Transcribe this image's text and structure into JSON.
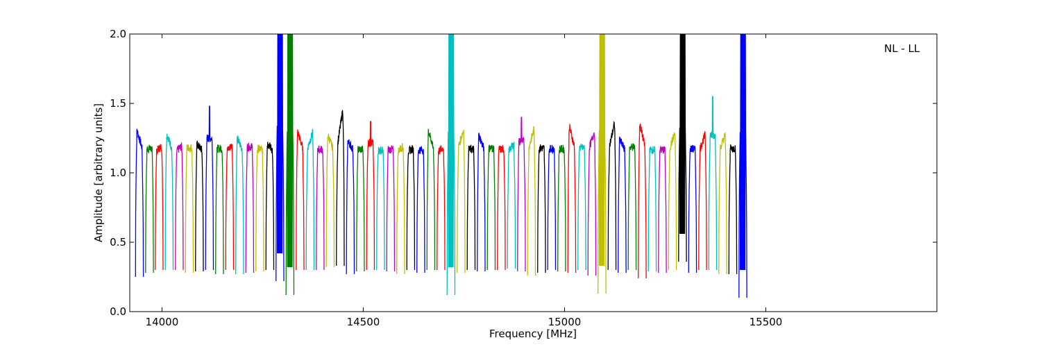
{
  "chart_data": {
    "type": "line",
    "title": "",
    "xlabel": "Frequency [MHz]",
    "ylabel": "Amplitude [arbitrary units]",
    "annotation": "NL - LL",
    "xlim": [
      13920,
      15925
    ],
    "ylim": [
      0.0,
      2.0
    ],
    "xticks": [
      14000,
      14500,
      15000,
      15500
    ],
    "xtick_labels": [
      "14000",
      "14500",
      "15000",
      "15500"
    ],
    "yticks": [
      0.0,
      0.5,
      1.0,
      1.5,
      2.0
    ],
    "ytick_labels": [
      "0.0",
      "0.5",
      "1.0",
      "1.5",
      "2.0"
    ],
    "grid": false,
    "legend": "none",
    "subband_width_mhz": 19.5,
    "colors": [
      "#0000ff",
      "#008000",
      "#ff0000",
      "#00bfbf",
      "#bf00bf",
      "#bfbf00",
      "#000000"
    ],
    "background_color": "#b0b0b0",
    "series": [
      {
        "center": 13944,
        "color": "#0000ff",
        "peak": 1.34,
        "floor": 0.25,
        "tilt": "left"
      },
      {
        "center": 13969,
        "color": "#008000",
        "peak": 1.23,
        "floor": 0.28,
        "tilt": "flat"
      },
      {
        "center": 13993,
        "color": "#ff0000",
        "peak": 1.2,
        "floor": 0.3,
        "tilt": "right"
      },
      {
        "center": 14018,
        "color": "#00bfbf",
        "peak": 1.31,
        "floor": 0.3,
        "tilt": "left"
      },
      {
        "center": 14043,
        "color": "#bf00bf",
        "peak": 1.2,
        "floor": 0.3,
        "tilt": "right"
      },
      {
        "center": 14068,
        "color": "#bfbf00",
        "peak": 1.25,
        "floor": 0.28,
        "tilt": "flat"
      },
      {
        "center": 14093,
        "color": "#000000",
        "peak": 1.22,
        "floor": 0.29,
        "tilt": "left"
      },
      {
        "center": 14118,
        "color": "#0000ff",
        "peak": 1.48,
        "floor": 0.3,
        "tilt": "spike"
      },
      {
        "center": 14143,
        "color": "#008000",
        "peak": 1.23,
        "floor": 0.27,
        "tilt": "flat"
      },
      {
        "center": 14168,
        "color": "#ff0000",
        "peak": 1.21,
        "floor": 0.3,
        "tilt": "right"
      },
      {
        "center": 14193,
        "color": "#00bfbf",
        "peak": 1.27,
        "floor": 0.27,
        "tilt": "left"
      },
      {
        "center": 14218,
        "color": "#bf00bf",
        "peak": 1.27,
        "floor": 0.28,
        "tilt": "flat"
      },
      {
        "center": 14243,
        "color": "#bfbf00",
        "peak": 1.22,
        "floor": 0.29,
        "tilt": "flat"
      },
      {
        "center": 14268,
        "color": "#000000",
        "peak": 1.23,
        "floor": 0.3,
        "tilt": "left"
      },
      {
        "center": 14293,
        "color": "#0000ff",
        "peak": 2.0,
        "floor": 0.22,
        "tilt": "rfi"
      },
      {
        "center": 14318,
        "color": "#008000",
        "peak": 2.0,
        "floor": 0.12,
        "tilt": "rfi"
      },
      {
        "center": 14343,
        "color": "#ff0000",
        "peak": 1.33,
        "floor": 0.3,
        "tilt": "left"
      },
      {
        "center": 14368,
        "color": "#00bfbf",
        "peak": 1.32,
        "floor": 0.3,
        "tilt": "right"
      },
      {
        "center": 14393,
        "color": "#bf00bf",
        "peak": 1.21,
        "floor": 0.3,
        "tilt": "flat"
      },
      {
        "center": 14418,
        "color": "#bfbf00",
        "peak": 1.3,
        "floor": 0.32,
        "tilt": "left"
      },
      {
        "center": 14443,
        "color": "#000000",
        "peak": 1.52,
        "floor": 0.33,
        "tilt": "right"
      },
      {
        "center": 14468,
        "color": "#0000ff",
        "peak": 1.25,
        "floor": 0.27,
        "tilt": "left"
      },
      {
        "center": 14493,
        "color": "#008000",
        "peak": 1.21,
        "floor": 0.29,
        "tilt": "flat"
      },
      {
        "center": 14518,
        "color": "#ff0000",
        "peak": 1.37,
        "floor": 0.3,
        "tilt": "spike"
      },
      {
        "center": 14543,
        "color": "#00bfbf",
        "peak": 1.19,
        "floor": 0.3,
        "tilt": "flat"
      },
      {
        "center": 14568,
        "color": "#bf00bf",
        "peak": 1.21,
        "floor": 0.29,
        "tilt": "flat"
      },
      {
        "center": 14593,
        "color": "#bfbf00",
        "peak": 1.2,
        "floor": 0.27,
        "tilt": "right"
      },
      {
        "center": 14618,
        "color": "#000000",
        "peak": 1.18,
        "floor": 0.3,
        "tilt": "right"
      },
      {
        "center": 14643,
        "color": "#0000ff",
        "peak": 1.2,
        "floor": 0.28,
        "tilt": "flat"
      },
      {
        "center": 14668,
        "color": "#008000",
        "peak": 1.34,
        "floor": 0.3,
        "tilt": "left"
      },
      {
        "center": 14693,
        "color": "#ff0000",
        "peak": 1.19,
        "floor": 0.3,
        "tilt": "right"
      },
      {
        "center": 14718,
        "color": "#00bfbf",
        "peak": 2.0,
        "floor": 0.12,
        "tilt": "rfi"
      },
      {
        "center": 14743,
        "color": "#bfbf00",
        "peak": 1.35,
        "floor": 0.28,
        "tilt": "right"
      },
      {
        "center": 14768,
        "color": "#000000",
        "peak": 1.21,
        "floor": 0.3,
        "tilt": "flat"
      },
      {
        "center": 14793,
        "color": "#0000ff",
        "peak": 1.3,
        "floor": 0.29,
        "tilt": "left"
      },
      {
        "center": 14818,
        "color": "#008000",
        "peak": 1.24,
        "floor": 0.3,
        "tilt": "flat"
      },
      {
        "center": 14843,
        "color": "#ff0000",
        "peak": 1.21,
        "floor": 0.3,
        "tilt": "flat"
      },
      {
        "center": 14868,
        "color": "#00bfbf",
        "peak": 1.22,
        "floor": 0.31,
        "tilt": "right"
      },
      {
        "center": 14893,
        "color": "#bf00bf",
        "peak": 1.4,
        "floor": 0.29,
        "tilt": "spike"
      },
      {
        "center": 14918,
        "color": "#bfbf00",
        "peak": 1.35,
        "floor": 0.26,
        "tilt": "right"
      },
      {
        "center": 14943,
        "color": "#000000",
        "peak": 1.24,
        "floor": 0.28,
        "tilt": "flat"
      },
      {
        "center": 14968,
        "color": "#0000ff",
        "peak": 1.23,
        "floor": 0.3,
        "tilt": "flat"
      },
      {
        "center": 14993,
        "color": "#008000",
        "peak": 1.22,
        "floor": 0.29,
        "tilt": "flat"
      },
      {
        "center": 15018,
        "color": "#ff0000",
        "peak": 1.38,
        "floor": 0.28,
        "tilt": "left"
      },
      {
        "center": 15043,
        "color": "#00bfbf",
        "peak": 1.25,
        "floor": 0.3,
        "tilt": "flat"
      },
      {
        "center": 15068,
        "color": "#bf00bf",
        "peak": 1.33,
        "floor": 0.26,
        "tilt": "right"
      },
      {
        "center": 15093,
        "color": "#bfbf00",
        "peak": 2.0,
        "floor": 0.13,
        "tilt": "rfi"
      },
      {
        "center": 15118,
        "color": "#000000",
        "peak": 1.4,
        "floor": 0.3,
        "tilt": "right"
      },
      {
        "center": 15143,
        "color": "#0000ff",
        "peak": 1.26,
        "floor": 0.28,
        "tilt": "left"
      },
      {
        "center": 15168,
        "color": "#008000",
        "peak": 1.27,
        "floor": 0.3,
        "tilt": "flat"
      },
      {
        "center": 15193,
        "color": "#ff0000",
        "peak": 1.4,
        "floor": 0.24,
        "tilt": "left"
      },
      {
        "center": 15218,
        "color": "#00bfbf",
        "peak": 1.2,
        "floor": 0.29,
        "tilt": "flat"
      },
      {
        "center": 15243,
        "color": "#bf00bf",
        "peak": 1.2,
        "floor": 0.28,
        "tilt": "flat"
      },
      {
        "center": 15268,
        "color": "#bfbf00",
        "peak": 1.32,
        "floor": 0.3,
        "tilt": "right"
      },
      {
        "center": 15293,
        "color": "#000000",
        "peak": 2.0,
        "floor": 0.36,
        "tilt": "rfi"
      },
      {
        "center": 15318,
        "color": "#0000ff",
        "peak": 1.22,
        "floor": 0.28,
        "tilt": "flat"
      },
      {
        "center": 15343,
        "color": "#ff0000",
        "peak": 1.3,
        "floor": 0.3,
        "tilt": "right"
      },
      {
        "center": 15368,
        "color": "#00bfbf",
        "peak": 1.55,
        "floor": 0.3,
        "tilt": "spike"
      },
      {
        "center": 15393,
        "color": "#bfbf00",
        "peak": 1.3,
        "floor": 0.27,
        "tilt": "right"
      },
      {
        "center": 15418,
        "color": "#000000",
        "peak": 1.23,
        "floor": 0.27,
        "tilt": "flat"
      },
      {
        "center": 15443,
        "color": "#0000ff",
        "peak": 2.0,
        "floor": 0.1,
        "tilt": "rfi"
      }
    ]
  }
}
